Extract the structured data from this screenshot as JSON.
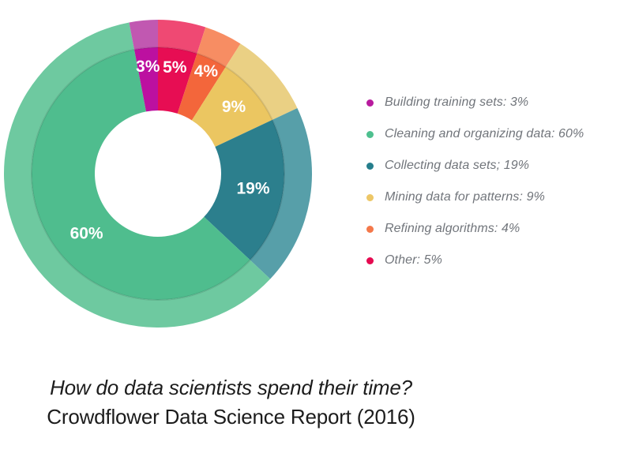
{
  "page": {
    "background": "#ffffff"
  },
  "chart_data": {
    "type": "donut",
    "title": "How do data scientists spend their time?",
    "subtitle": "Crowdflower Data Science Report (2016)",
    "unit": "%",
    "direction": "clockwise",
    "start_angle_deg": 0,
    "legend_position": "right",
    "ring_style": "double (outer ring lighter tint of each segment)",
    "segments": [
      {
        "label": "Other",
        "value": 5,
        "color": "#E70D53",
        "light_color": "#EF4973",
        "label_r": 136
      },
      {
        "label": "Refining algorithms",
        "value": 4,
        "color": "#F3663B",
        "light_color": "#F78D63",
        "label_r": 143
      },
      {
        "label": "Mining data for patterns",
        "value": 9,
        "color": "#EBC661",
        "light_color": "#EAD084",
        "label_r": 128
      },
      {
        "label": "Collecting data sets",
        "value": 19,
        "color": "#2C7F8D",
        "light_color": "#579FA9",
        "label_r": 122
      },
      {
        "label": "Cleaning and organizing data",
        "value": 60,
        "color": "#4FBD8E",
        "light_color": "#6EC9A0",
        "label_r": 118,
        "label_angle": 230
      },
      {
        "label": "Building training sets",
        "value": 3,
        "color": "#BC10A0",
        "light_color": "#C158B1",
        "label_r": 136
      }
    ]
  },
  "legend": {
    "items": [
      {
        "text": "Building training sets: 3%",
        "color": "#B81B9E"
      },
      {
        "text": "Cleaning and organizing data: 60%",
        "color": "#4EC08F"
      },
      {
        "text": "Collecting data sets; 19%",
        "color": "#257E8C"
      },
      {
        "text": "Mining data for patterns: 9%",
        "color": "#EDC767"
      },
      {
        "text": "Refining algorithms: 4%",
        "color": "#F4784A"
      },
      {
        "text": "Other: 5%",
        "color": "#E50A50"
      }
    ]
  },
  "caption": {
    "line1": "How do data scientists spend their time?",
    "line2": "Crowdflower Data Science Report (2016)"
  }
}
